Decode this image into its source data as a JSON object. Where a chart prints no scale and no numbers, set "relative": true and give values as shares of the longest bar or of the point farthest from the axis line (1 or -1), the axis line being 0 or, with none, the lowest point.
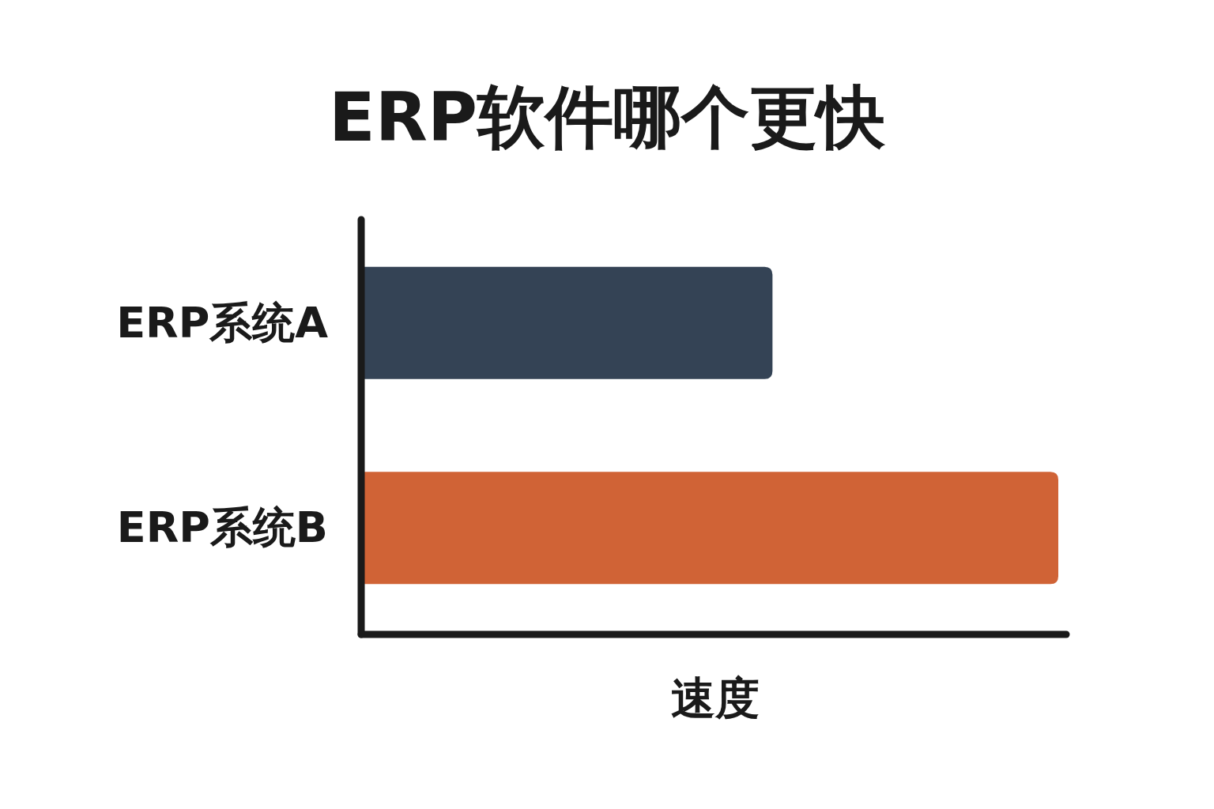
{
  "chart_data": {
    "type": "bar",
    "orientation": "horizontal",
    "relative": true,
    "title": "ERP软件哪个更快",
    "xlabel": "速度",
    "categories": [
      "ERP系统A",
      "ERP系统B"
    ],
    "values": [
      0.59,
      1
    ],
    "colors": [
      "#344355",
      "#d06336"
    ]
  }
}
